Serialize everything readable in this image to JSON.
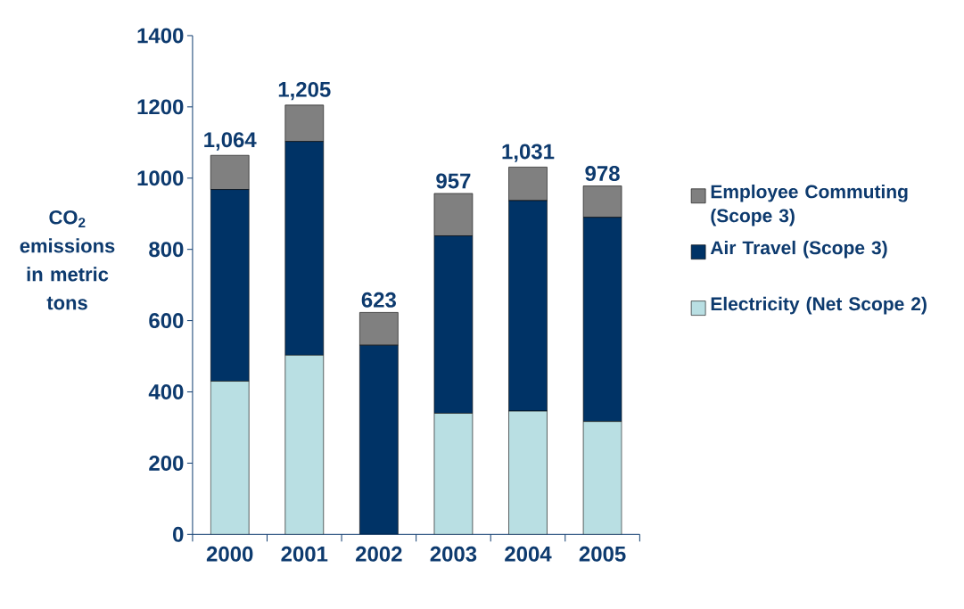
{
  "chart_data": {
    "type": "bar",
    "stacked": true,
    "ylabel": "CO$_{2}$ emissions in metric tons",
    "categories": [
      "2000",
      "2001",
      "2002",
      "2003",
      "2004",
      "2005"
    ],
    "series": [
      {
        "name": "Electricity (Net Scope 2)",
        "color": "#b9dfe3",
        "values": [
          430,
          503,
          0,
          340,
          346,
          317
        ]
      },
      {
        "name": "Air Travel (Scope 3)",
        "color": "#003366",
        "values": [
          538,
          600,
          531,
          498,
          591,
          573
        ]
      },
      {
        "name": "Employee Commuting (Scope 3)",
        "color": "#808080",
        "values": [
          96,
          102,
          92,
          119,
          94,
          88
        ]
      }
    ],
    "totals": [
      "1,064",
      "1,205",
      "623",
      "957",
      "1,031",
      "978"
    ],
    "ylim": [
      0,
      1400
    ],
    "yticks": [
      0,
      200,
      400,
      600,
      800,
      1000,
      1200,
      1400
    ],
    "grid": false,
    "legend": "right"
  }
}
